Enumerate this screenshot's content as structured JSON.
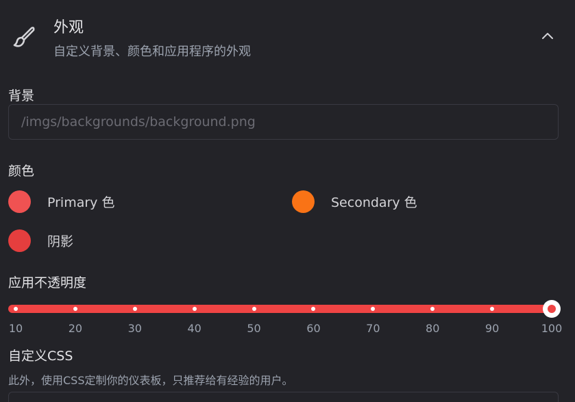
{
  "header": {
    "title": "外观",
    "subtitle": "自定义背景、颜色和应用程序的外观",
    "icon": "paintbrush-icon",
    "collapse_icon": "chevron-up-icon"
  },
  "background": {
    "label": "背景",
    "placeholder": "/imgs/backgrounds/background.png",
    "value": ""
  },
  "colors": {
    "label": "颜色",
    "items": [
      {
        "label": "Primary 色",
        "color": "#f05252"
      },
      {
        "label": "Secondary 色",
        "color": "#f97316"
      },
      {
        "label": "阴影",
        "color": "#e53e3e"
      }
    ]
  },
  "opacity": {
    "label": "应用不透明度",
    "value": 100,
    "track_color": "#ef4444",
    "ticks": [
      "10",
      "20",
      "30",
      "40",
      "50",
      "60",
      "70",
      "80",
      "90",
      "100"
    ]
  },
  "custom_css": {
    "label": "自定义CSS",
    "description": "此外，使用CSS定制你的仪表板，只推荐给有经验的用户。"
  }
}
